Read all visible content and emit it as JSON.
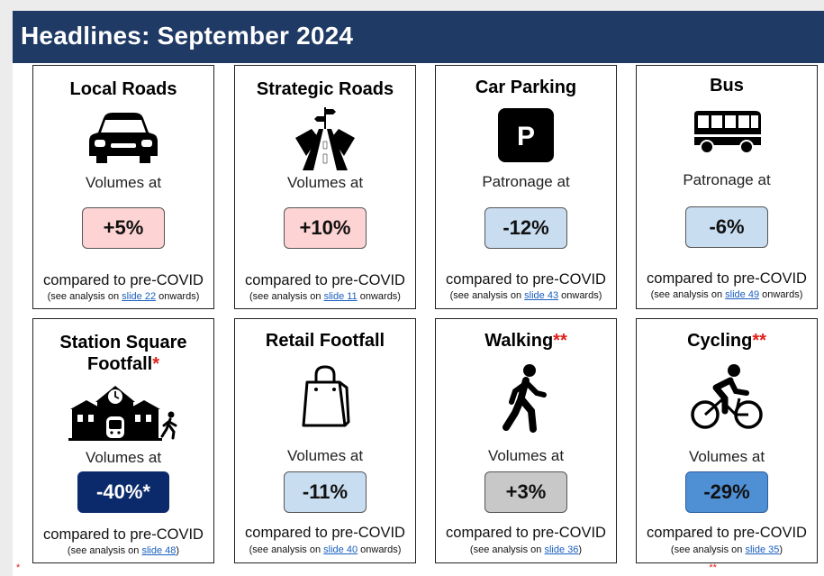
{
  "header": {
    "title": "Headlines: September 2024"
  },
  "cards": [
    {
      "title": "Local Roads",
      "title_star": "",
      "icon": "car-icon",
      "label": "Volumes at",
      "value": "+5%",
      "value_color": "#fdd3d3",
      "value_text_color": "#111111",
      "compared": "compared to pre-COVID",
      "see_prefix": "(see analysis on ",
      "slide_link": "slide 22",
      "see_suffix": " onwards)"
    },
    {
      "title": "Strategic Roads",
      "title_star": "",
      "icon": "highway-icon",
      "label": "Volumes at",
      "value": "+10%",
      "value_color": "#fdd3d3",
      "value_text_color": "#111111",
      "compared": "compared to pre-COVID",
      "see_prefix": "(see analysis on ",
      "slide_link": "slide 11",
      "see_suffix": " onwards)"
    },
    {
      "title": "Car Parking",
      "title_star": "",
      "icon": "parking-icon",
      "label": "Patronage at",
      "value": "-12%",
      "value_color": "#c9ddf1",
      "value_text_color": "#111111",
      "compared": "compared to pre-COVID",
      "see_prefix": "(see analysis on ",
      "slide_link": "slide 43",
      "see_suffix": " onwards)"
    },
    {
      "title": "Bus",
      "title_star": "",
      "icon": "bus-icon",
      "label": "Patronage at",
      "value": "-6%",
      "value_color": "#c9ddf1",
      "value_text_color": "#111111",
      "compared": "compared to pre-COVID",
      "see_prefix": "(see analysis on ",
      "slide_link": "slide 49",
      "see_suffix": " onwards)"
    },
    {
      "title": "Station Square Footfall",
      "title_star": "*",
      "icon": "station-icon",
      "label": "Volumes at",
      "value": "-40%*",
      "value_color": "#0b2a6b",
      "value_text_color": "#ffffff",
      "compared": "compared to pre-COVID",
      "see_prefix": "(see analysis on ",
      "slide_link": "slide 48",
      "see_suffix": ")"
    },
    {
      "title": "Retail Footfall",
      "title_star": "",
      "icon": "shopping-bag-icon",
      "label": "Volumes at",
      "value": "-11%",
      "value_color": "#c9ddf1",
      "value_text_color": "#111111",
      "compared": "compared to pre-COVID",
      "see_prefix": "(see analysis on ",
      "slide_link": "slide 40",
      "see_suffix": " onwards)"
    },
    {
      "title": "Walking",
      "title_star": "**",
      "icon": "walking-icon",
      "label": "Volumes at",
      "value": "+3%",
      "value_color": "#c8c8c8",
      "value_text_color": "#111111",
      "compared": "compared to pre-COVID",
      "see_prefix": "(see analysis on ",
      "slide_link": "slide 36",
      "see_suffix": ")"
    },
    {
      "title": "Cycling",
      "title_star": "**",
      "icon": "cycling-icon",
      "label": "Volumes at",
      "value": "-29%",
      "value_color": "#4f8fd4",
      "value_text_color": "#111111",
      "compared": "compared to pre-COVID",
      "see_prefix": "(see analysis on ",
      "slide_link": "slide 35",
      "see_suffix": ")"
    }
  ],
  "footnote": {
    "star": "*",
    "star2": "**"
  }
}
